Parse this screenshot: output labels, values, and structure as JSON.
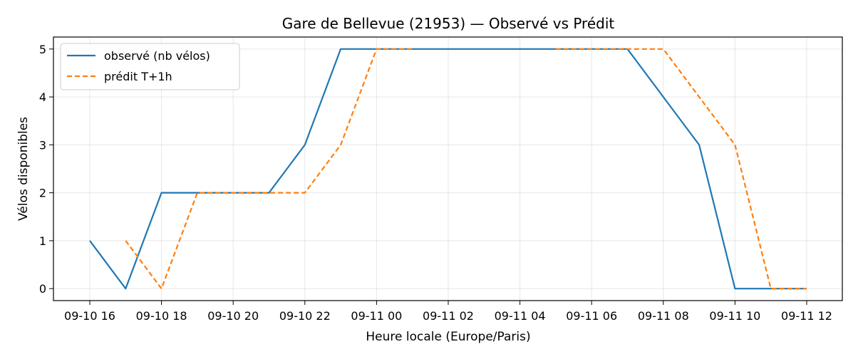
{
  "chart_data": {
    "type": "line",
    "title": "Gare de Bellevue (21953) — Observé vs Prédit",
    "xlabel": "Heure locale (Europe/Paris)",
    "ylabel": "Vélos disponibles",
    "x": [
      "09-10 16:00",
      "09-10 17:00",
      "09-10 18:00",
      "09-10 19:00",
      "09-10 20:00",
      "09-10 21:00",
      "09-10 22:00",
      "09-10 23:00",
      "09-11 00:00",
      "09-11 01:00",
      "09-11 02:00",
      "09-11 03:00",
      "09-11 04:00",
      "09-11 05:00",
      "09-11 06:00",
      "09-11 07:00",
      "09-11 08:00",
      "09-11 09:00",
      "09-11 10:00",
      "09-11 11:00",
      "09-11 12:00"
    ],
    "x_ticks": [
      "09-10 16",
      "09-10 18",
      "09-10 20",
      "09-10 22",
      "09-11 00",
      "09-11 02",
      "09-11 04",
      "09-11 06",
      "09-11 08",
      "09-11 10",
      "09-11 12"
    ],
    "y_ticks": [
      0,
      1,
      2,
      3,
      4,
      5
    ],
    "ylim": [
      -0.25,
      5.25
    ],
    "grid": true,
    "legend_position": "top-left",
    "series": [
      {
        "name": "observé (nb vélos)",
        "color": "#1f77b4",
        "style": "solid",
        "values": [
          1,
          0,
          2,
          2,
          2,
          2,
          3,
          5,
          5,
          5,
          5,
          5,
          5,
          5,
          5,
          5,
          4,
          3,
          0,
          0,
          0
        ]
      },
      {
        "name": "prédit T+1h",
        "color": "#ff7f0e",
        "style": "dashed",
        "values": [
          null,
          1,
          0,
          2,
          2,
          2,
          2,
          3,
          5,
          5,
          null,
          null,
          null,
          5,
          5,
          5,
          5,
          4,
          3,
          0,
          0
        ]
      }
    ]
  }
}
